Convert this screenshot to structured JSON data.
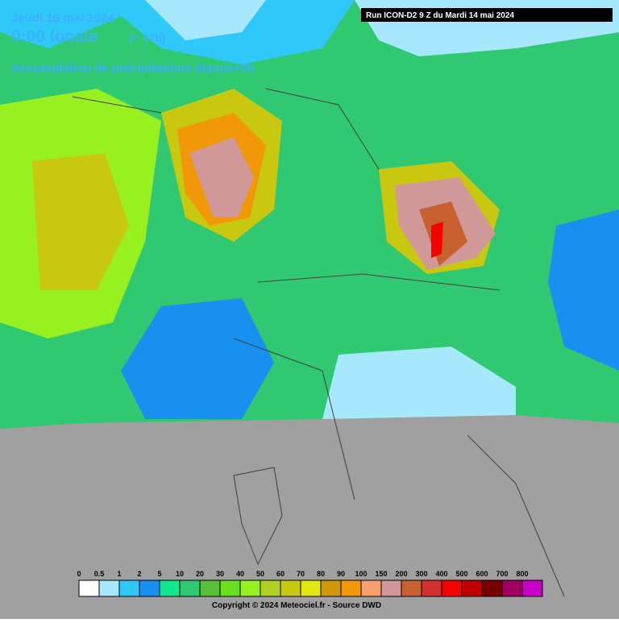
{
  "header": {
    "date": "Jeudi 16 mai 2024",
    "time": "0:00 locale",
    "offset": "(+ 37h)",
    "subtitle": "Accumulation de précipitations depuis+0h",
    "run": "Run ICON-D2 9 Z du Mardi 14 mai 2024"
  },
  "legend": {
    "items": [
      {
        "label": "0",
        "color": "#ffffff"
      },
      {
        "label": "0.5",
        "color": "#a8e8fc"
      },
      {
        "label": "1",
        "color": "#30c8f8"
      },
      {
        "label": "2",
        "color": "#1890f0"
      },
      {
        "label": "5",
        "color": "#10e890"
      },
      {
        "label": "10",
        "color": "#30c870"
      },
      {
        "label": "20",
        "color": "#58c038"
      },
      {
        "label": "30",
        "color": "#68e020"
      },
      {
        "label": "40",
        "color": "#98f020"
      },
      {
        "label": "50",
        "color": "#b0d020"
      },
      {
        "label": "60",
        "color": "#c8c810"
      },
      {
        "label": "70",
        "color": "#e0e810"
      },
      {
        "label": "80",
        "color": "#d09808"
      },
      {
        "label": "90",
        "color": "#f09808"
      },
      {
        "label": "100",
        "color": "#f8a070"
      },
      {
        "label": "150",
        "color": "#d09898"
      },
      {
        "label": "200",
        "color": "#c86030"
      },
      {
        "label": "300",
        "color": "#d03030"
      },
      {
        "label": "400",
        "color": "#f80000"
      },
      {
        "label": "500",
        "color": "#c00000"
      },
      {
        "label": "600",
        "color": "#780000"
      },
      {
        "label": "700",
        "color": "#a00060"
      },
      {
        "label": "800",
        "color": "#c800c8"
      }
    ]
  },
  "footer": {
    "copyright": "Copyright © 2024 Meteociel.fr - Source DWD"
  }
}
